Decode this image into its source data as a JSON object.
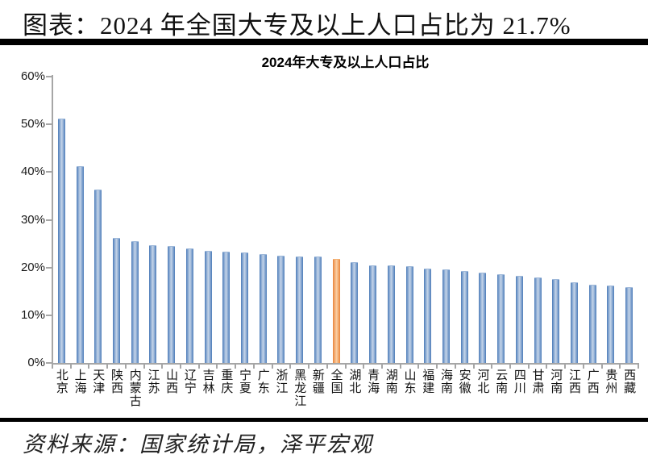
{
  "page_title": "图表：2024 年全国大专及以上人口占比为 21.7%",
  "source_note": "资料来源：国家统计局，泽平宏观",
  "colors": {
    "bar_blue_edge": "#4d7cb8",
    "bar_blue_center": "#c6d5e9",
    "bar_orange_edge": "#e9853c",
    "bar_orange_center": "#fbd0a5",
    "axis_gray": "#a6a6a6",
    "rule_black": "#000000"
  },
  "chart_data": {
    "type": "bar",
    "title": "2024年大专及以上人口占比",
    "categories": [
      "北京",
      "上海",
      "天津",
      "陕西",
      "内蒙古",
      "江苏",
      "山西",
      "辽宁",
      "吉林",
      "重庆",
      "宁夏",
      "广东",
      "浙江",
      "黑龙江",
      "新疆",
      "全国",
      "湖北",
      "青海",
      "湖南",
      "山东",
      "福建",
      "海南",
      "安徽",
      "河北",
      "云南",
      "四川",
      "甘肃",
      "河南",
      "江西",
      "广西",
      "贵州",
      "西藏"
    ],
    "values": [
      51.0,
      41.0,
      36.1,
      26.1,
      25.4,
      24.5,
      24.4,
      23.9,
      23.4,
      23.1,
      23.0,
      22.6,
      22.3,
      22.2,
      22.2,
      21.7,
      21.0,
      20.3,
      20.2,
      20.1,
      19.6,
      19.5,
      19.1,
      18.8,
      18.5,
      18.1,
      17.7,
      17.4,
      16.7,
      16.3,
      16.0,
      15.7
    ],
    "highlight_category": "全国",
    "highlight_value": 21.7,
    "xlabel": "",
    "ylabel": "",
    "ylim": [
      0,
      60
    ],
    "ytick_step": 10,
    "ytick_labels": [
      "0%",
      "10%",
      "20%",
      "30%",
      "40%",
      "50%",
      "60%"
    ],
    "grid": false,
    "legend": "none"
  }
}
